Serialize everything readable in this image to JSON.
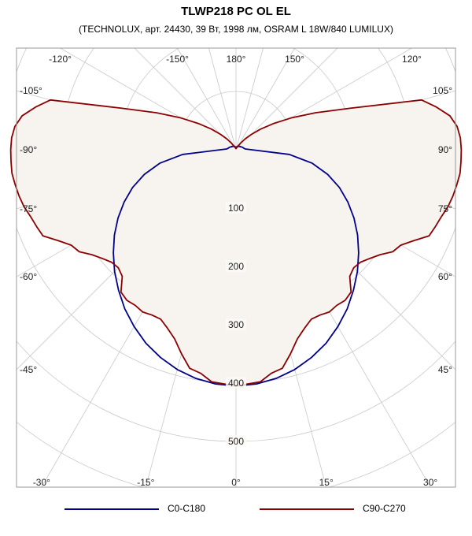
{
  "chart_data": {
    "type": "polar-line",
    "title": "TLWP218 PC OL EL",
    "subtitle": "(TECHNOLUX, арт. 24430, 39 Вт, 1998 лм, OSRAM L 18W/840 LUMILUX)",
    "angle_tick_labels": [
      "0°",
      "15°",
      "30°",
      "45°",
      "60°",
      "75°",
      "90°",
      "105°",
      "120°",
      "150°",
      "180°",
      "-150°",
      "-120°",
      "-105°",
      "-90°",
      "-75°",
      "-60°",
      "-45°",
      "-30°",
      "-15°"
    ],
    "angle_tick_values": [
      0,
      15,
      30,
      45,
      60,
      75,
      90,
      105,
      120,
      150,
      180,
      -150,
      -120,
      -105,
      -90,
      -75,
      -60,
      -45,
      -30,
      -15
    ],
    "radial_tick_labels": [
      "100",
      "200",
      "300",
      "400",
      "500"
    ],
    "radial_ticks": [
      100,
      200,
      300,
      400,
      500
    ],
    "rmax": 700,
    "grid": true,
    "legend_position": "bottom",
    "colors": {
      "c0": "#00008b",
      "c90": "#8b0000",
      "fill": "#f7f3ef",
      "grid": "#c8c8c8"
    },
    "series": [
      {
        "name": "C0-C180",
        "angles": [
          0,
          5,
          10,
          15,
          20,
          25,
          30,
          35,
          40,
          45,
          50,
          55,
          60,
          65,
          70,
          75,
          80,
          85,
          90,
          95,
          100,
          105,
          110,
          115,
          120,
          125,
          130,
          135,
          140,
          145,
          150,
          155,
          160,
          165,
          170,
          175,
          180
        ],
        "values": [
          405,
          403,
          398,
          390,
          379,
          366,
          350,
          333,
          314,
          295,
          275,
          255,
          234,
          212,
          189,
          163,
          133,
          92,
          27,
          16,
          14,
          13,
          12,
          11,
          10,
          9,
          9,
          8,
          8,
          7,
          7,
          6,
          6,
          5,
          5,
          4,
          4
        ]
      },
      {
        "name": "C90-C270",
        "angles": [
          0,
          3,
          6,
          9,
          12,
          15,
          18,
          21,
          24,
          27,
          30,
          33,
          36,
          39,
          42,
          45,
          48,
          51,
          54,
          57,
          60,
          63,
          66,
          69,
          72,
          75,
          78,
          81,
          84,
          87,
          90,
          93,
          96,
          99,
          102,
          105,
          110,
          115,
          120,
          125,
          130,
          135,
          140,
          145,
          150,
          155,
          160,
          165,
          170,
          175,
          180
        ],
        "values": [
          405,
          402,
          400,
          388,
          383,
          362,
          341,
          328,
          318,
          318,
          321,
          318,
          319,
          314,
          292,
          286,
          288,
          296,
          306,
          321,
          327,
          343,
          363,
          367,
          371,
          377,
          381,
          384,
          387,
          387,
          387,
          386,
          382,
          372,
          352,
          330,
          208,
          150,
          109,
          78,
          55,
          37,
          24,
          14,
          8,
          5,
          4,
          3,
          3,
          2,
          2
        ]
      }
    ]
  }
}
